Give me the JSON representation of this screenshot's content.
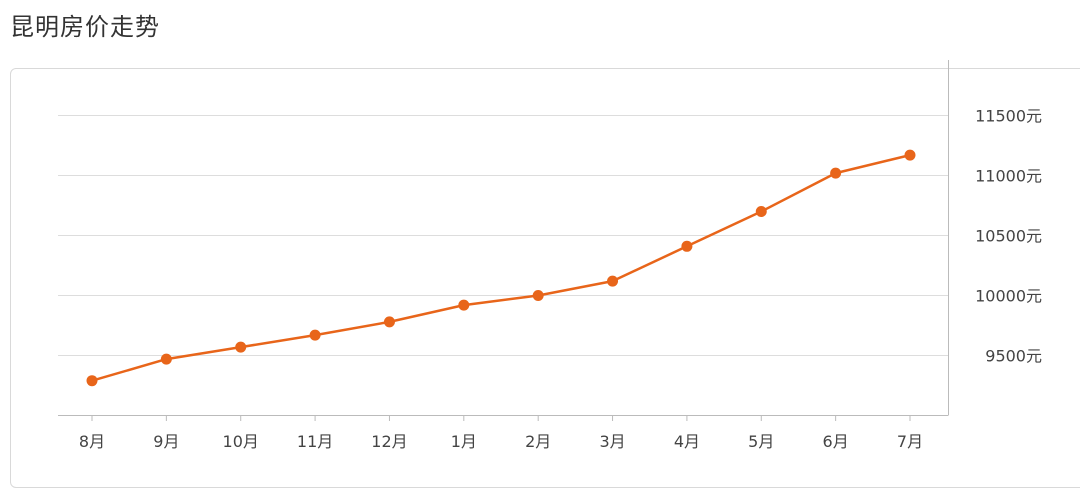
{
  "page": {
    "title": "昆明房价走势"
  },
  "chart_data": {
    "type": "line",
    "title": "昆明房价走势",
    "xlabel": "",
    "ylabel": "",
    "categories": [
      "8月",
      "9月",
      "10月",
      "11月",
      "12月",
      "1月",
      "2月",
      "3月",
      "4月",
      "5月",
      "6月",
      "7月"
    ],
    "series": [
      {
        "values": [
          9290,
          9470,
          9570,
          9670,
          9780,
          9920,
          10000,
          10120,
          10410,
          10700,
          11020,
          11170
        ]
      }
    ],
    "y_ticks": [
      "9500元",
      "10000元",
      "10500元",
      "11000元",
      "11500元"
    ],
    "y_tick_values": [
      9500,
      10000,
      10500,
      11000,
      11500
    ],
    "ylim": [
      9000,
      11500
    ],
    "y_axis_position": "right",
    "grid": "horizontal",
    "colors": {
      "line": "#e8651a",
      "marker": "#e8651a",
      "grid": "#dddddd",
      "axis": "#bbbbbb"
    }
  }
}
